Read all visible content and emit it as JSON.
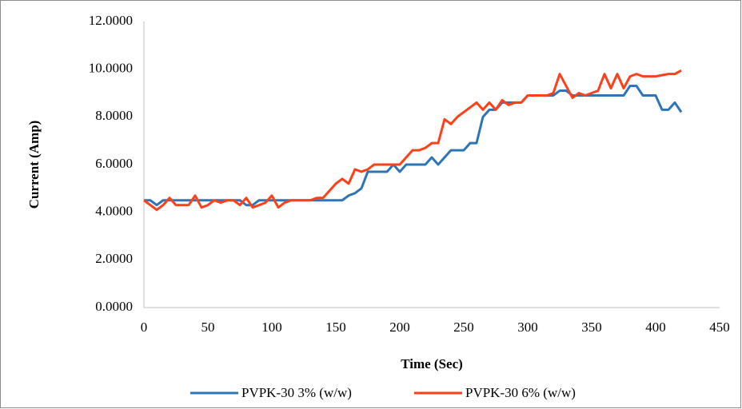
{
  "chart_data": {
    "type": "line",
    "xlabel": "Time (Sec)",
    "ylabel": "Current (Amp)",
    "x": [
      0,
      5,
      10,
      15,
      20,
      25,
      30,
      35,
      40,
      45,
      50,
      55,
      60,
      65,
      70,
      75,
      80,
      85,
      90,
      95,
      100,
      105,
      110,
      115,
      120,
      125,
      130,
      135,
      140,
      145,
      150,
      155,
      160,
      165,
      170,
      175,
      180,
      185,
      190,
      195,
      200,
      205,
      210,
      215,
      220,
      225,
      230,
      235,
      240,
      245,
      250,
      255,
      260,
      265,
      270,
      275,
      280,
      285,
      290,
      295,
      300,
      305,
      310,
      315,
      320,
      325,
      330,
      335,
      340,
      345,
      350,
      355,
      360,
      365,
      370,
      375,
      380,
      385,
      390,
      395,
      400,
      405,
      410,
      415,
      420
    ],
    "series": [
      {
        "name": "PVPK-30 3% (w/w)",
        "color": "#2e75b6",
        "values": [
          4.5,
          4.5,
          4.3,
          4.5,
          4.5,
          4.5,
          4.5,
          4.5,
          4.5,
          4.5,
          4.5,
          4.5,
          4.5,
          4.5,
          4.5,
          4.5,
          4.3,
          4.3,
          4.5,
          4.5,
          4.5,
          4.5,
          4.5,
          4.5,
          4.5,
          4.5,
          4.5,
          4.5,
          4.5,
          4.5,
          4.5,
          4.5,
          4.7,
          4.8,
          5.0,
          5.7,
          5.7,
          5.7,
          5.7,
          6.0,
          5.7,
          6.0,
          6.0,
          6.0,
          6.0,
          6.3,
          6.0,
          6.3,
          6.6,
          6.6,
          6.6,
          6.9,
          6.9,
          8.0,
          8.3,
          8.3,
          8.6,
          8.6,
          8.6,
          8.6,
          8.9,
          8.9,
          8.9,
          8.9,
          8.9,
          9.1,
          9.1,
          8.9,
          8.9,
          8.9,
          8.9,
          8.9,
          8.9,
          8.9,
          8.9,
          8.9,
          9.3,
          9.3,
          8.9,
          8.9,
          8.9,
          8.3,
          8.3,
          8.6,
          8.2
        ]
      },
      {
        "name": "PVPK-30 6% (w/w)",
        "color": "#ff4019",
        "values": [
          4.5,
          4.3,
          4.1,
          4.3,
          4.6,
          4.3,
          4.3,
          4.3,
          4.7,
          4.2,
          4.3,
          4.5,
          4.4,
          4.5,
          4.5,
          4.3,
          4.6,
          4.2,
          4.3,
          4.4,
          4.7,
          4.2,
          4.4,
          4.5,
          4.5,
          4.5,
          4.5,
          4.6,
          4.6,
          4.9,
          5.2,
          5.4,
          5.2,
          5.8,
          5.7,
          5.8,
          6.0,
          6.0,
          6.0,
          6.0,
          6.0,
          6.3,
          6.6,
          6.6,
          6.7,
          6.9,
          6.9,
          7.9,
          7.7,
          8.0,
          8.2,
          8.4,
          8.6,
          8.3,
          8.6,
          8.3,
          8.7,
          8.5,
          8.6,
          8.6,
          8.9,
          8.9,
          8.9,
          8.9,
          9.0,
          9.8,
          9.3,
          8.8,
          9.0,
          8.9,
          9.0,
          9.1,
          9.8,
          9.2,
          9.8,
          9.2,
          9.7,
          9.8,
          9.7,
          9.7,
          9.7,
          9.75,
          9.8,
          9.8,
          9.95
        ]
      }
    ],
    "xlim": [
      0,
      450
    ],
    "xticks": [
      0,
      50,
      100,
      150,
      200,
      250,
      300,
      350,
      400,
      450
    ],
    "ylim": [
      0,
      12
    ],
    "yticks": [
      {
        "value": 0,
        "label": "0.0000"
      },
      {
        "value": 2,
        "label": "2.0000"
      },
      {
        "value": 4,
        "label": "4.0000"
      },
      {
        "value": 6,
        "label": "6.0000"
      },
      {
        "value": 8,
        "label": "8.0000"
      },
      {
        "value": 10,
        "label": "10.0000"
      },
      {
        "value": 12,
        "label": "12.0000"
      }
    ],
    "legend": "bottom"
  }
}
